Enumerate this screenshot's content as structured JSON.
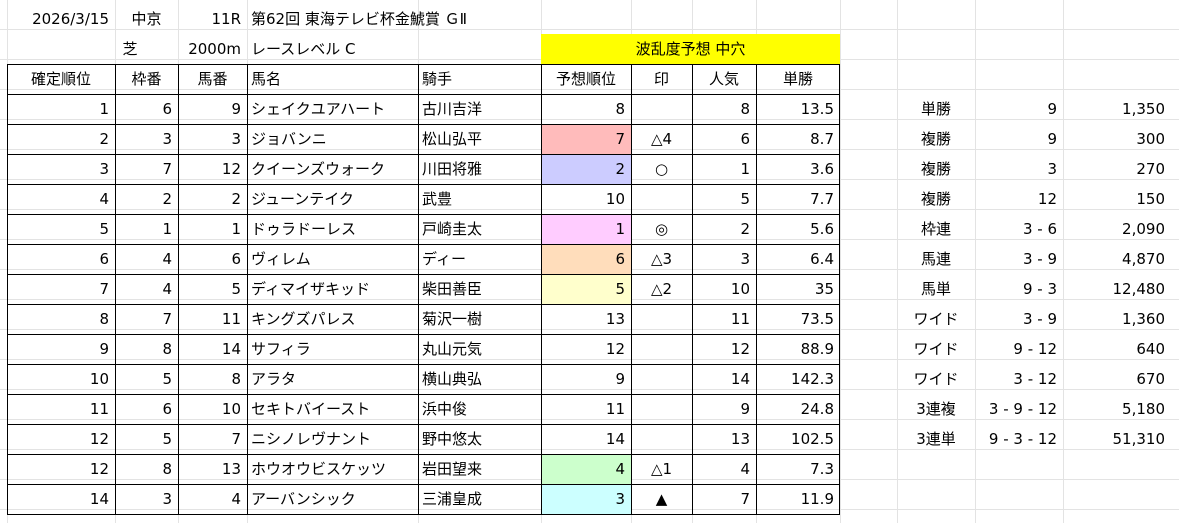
{
  "info": {
    "date": "2026/3/15",
    "venue": "中京",
    "race_no": "11R",
    "race_name": "第62回 東海テレビ杯金鯱賞 ＧⅡ",
    "surface": "芝",
    "distance": "2000m",
    "level": "レースレベル C",
    "forecast": "波乱度予想 中穴"
  },
  "colors": {
    "forecast_bg": "#ffff00",
    "pred_1": "#ffccff",
    "pred_2": "#ccccff",
    "pred_4": "#ccffcc",
    "pred_3": "#ccffff",
    "pred_5": "#ffffcc",
    "pred_6": "#ffddbb",
    "pred_7": "#ffbbbb"
  },
  "headers": [
    "確定順位",
    "枠番",
    "馬番",
    "馬名",
    "騎手",
    "予想順位",
    "印",
    "人気",
    "単勝"
  ],
  "rows": [
    {
      "rank": "1",
      "waku": "6",
      "uma": "9",
      "horse": "シェイクユアハート",
      "jockey": "古川吉洋",
      "pred": "8",
      "mark": "",
      "pop": "8",
      "odds": "13.5",
      "pcolor": ""
    },
    {
      "rank": "2",
      "waku": "3",
      "uma": "3",
      "horse": "ジョバンニ",
      "jockey": "松山弘平",
      "pred": "7",
      "mark": "△4",
      "pop": "6",
      "odds": "8.7",
      "pcolor": "#ffbbbb"
    },
    {
      "rank": "3",
      "waku": "7",
      "uma": "12",
      "horse": "クイーンズウォーク",
      "jockey": "川田将雅",
      "pred": "2",
      "mark": "○",
      "pop": "1",
      "odds": "3.6",
      "pcolor": "#ccccff"
    },
    {
      "rank": "4",
      "waku": "2",
      "uma": "2",
      "horse": "ジューンテイク",
      "jockey": "武豊",
      "pred": "10",
      "mark": "",
      "pop": "5",
      "odds": "7.7",
      "pcolor": ""
    },
    {
      "rank": "5",
      "waku": "1",
      "uma": "1",
      "horse": "ドゥラドーレス",
      "jockey": "戸崎圭太",
      "pred": "1",
      "mark": "◎",
      "pop": "2",
      "odds": "5.6",
      "pcolor": "#ffccff"
    },
    {
      "rank": "6",
      "waku": "4",
      "uma": "6",
      "horse": "ヴィレム",
      "jockey": "ディー",
      "pred": "6",
      "mark": "△3",
      "pop": "3",
      "odds": "6.4",
      "pcolor": "#ffddbb"
    },
    {
      "rank": "7",
      "waku": "4",
      "uma": "5",
      "horse": "ディマイザキッド",
      "jockey": "柴田善臣",
      "pred": "5",
      "mark": "△2",
      "pop": "10",
      "odds": "35",
      "pcolor": "#ffffcc"
    },
    {
      "rank": "8",
      "waku": "7",
      "uma": "11",
      "horse": "キングズパレス",
      "jockey": "菊沢一樹",
      "pred": "13",
      "mark": "",
      "pop": "11",
      "odds": "73.5",
      "pcolor": ""
    },
    {
      "rank": "9",
      "waku": "8",
      "uma": "14",
      "horse": "サフィラ",
      "jockey": "丸山元気",
      "pred": "12",
      "mark": "",
      "pop": "12",
      "odds": "88.9",
      "pcolor": ""
    },
    {
      "rank": "10",
      "waku": "5",
      "uma": "8",
      "horse": "アラタ",
      "jockey": "横山典弘",
      "pred": "9",
      "mark": "",
      "pop": "14",
      "odds": "142.3",
      "pcolor": ""
    },
    {
      "rank": "11",
      "waku": "6",
      "uma": "10",
      "horse": "セキトバイースト",
      "jockey": "浜中俊",
      "pred": "11",
      "mark": "",
      "pop": "9",
      "odds": "24.8",
      "pcolor": ""
    },
    {
      "rank": "12",
      "waku": "5",
      "uma": "7",
      "horse": "ニシノレヴナント",
      "jockey": "野中悠太",
      "pred": "14",
      "mark": "",
      "pop": "13",
      "odds": "102.5",
      "pcolor": ""
    },
    {
      "rank": "12",
      "waku": "8",
      "uma": "13",
      "horse": "ホウオウビスケッツ",
      "jockey": "岩田望来",
      "pred": "4",
      "mark": "△1",
      "pop": "4",
      "odds": "7.3",
      "pcolor": "#ccffcc"
    },
    {
      "rank": "14",
      "waku": "3",
      "uma": "4",
      "horse": "アーバンシック",
      "jockey": "三浦皇成",
      "pred": "3",
      "mark": "▲",
      "pop": "7",
      "odds": "11.9",
      "pcolor": "#ccffff"
    }
  ],
  "payouts": [
    {
      "type": "単勝",
      "combo": "9",
      "amount": "1,350"
    },
    {
      "type": "複勝",
      "combo": "9",
      "amount": "300"
    },
    {
      "type": "複勝",
      "combo": "3",
      "amount": "270"
    },
    {
      "type": "複勝",
      "combo": "12",
      "amount": "150"
    },
    {
      "type": "枠連",
      "combo": "3 - 6",
      "amount": "2,090"
    },
    {
      "type": "馬連",
      "combo": "3 - 9",
      "amount": "4,870"
    },
    {
      "type": "馬単",
      "combo": "9 - 3",
      "amount": "12,480"
    },
    {
      "type": "ワイド",
      "combo": "3 - 9",
      "amount": "1,360"
    },
    {
      "type": "ワイド",
      "combo": "9 - 12",
      "amount": "640"
    },
    {
      "type": "ワイド",
      "combo": "3 - 12",
      "amount": "670"
    },
    {
      "type": "3連複",
      "combo": "3 - 9 - 12",
      "amount": "5,180"
    },
    {
      "type": "3連単",
      "combo": "9 - 3 - 12",
      "amount": "51,310"
    }
  ]
}
